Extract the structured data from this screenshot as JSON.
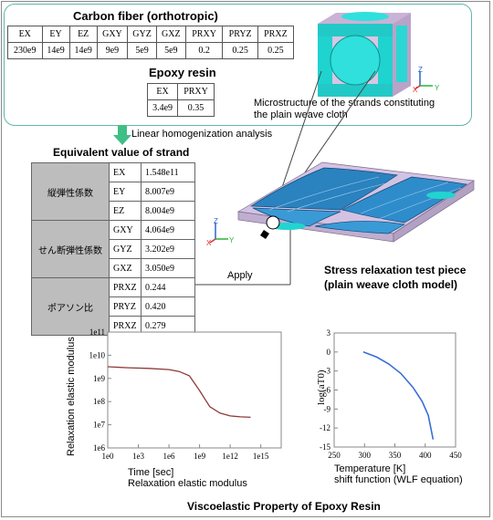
{
  "carbon": {
    "title": "Carbon fiber (orthotropic)",
    "headers": [
      "EX",
      "EY",
      "EZ",
      "GXY",
      "GYZ",
      "GXZ",
      "PRXY",
      "PRYZ",
      "PRXZ"
    ],
    "values": [
      "230e9",
      "14e9",
      "14e9",
      "9e9",
      "5e9",
      "5e9",
      "0.2",
      "0.25",
      "0.25"
    ]
  },
  "epoxy": {
    "title": "Epoxy resin",
    "headers": [
      "EX",
      "PRXY"
    ],
    "values": [
      "3.4e9",
      "0.35"
    ]
  },
  "micro_caption_1": "Microstructure of the strands constituting",
  "micro_caption_2": "the plain weave cloth",
  "linear_label": "Linear homogenization analysis",
  "equiv": {
    "title": "Equivalent value of strand",
    "groups": [
      {
        "name": "縦弾性係数",
        "rows": [
          [
            "EX",
            "1.548e11"
          ],
          [
            "EY",
            "8.007e9"
          ],
          [
            "EZ",
            "8.004e9"
          ]
        ]
      },
      {
        "name": "せん断弾性係数",
        "rows": [
          [
            "GXY",
            "4.064e9"
          ],
          [
            "GYZ",
            "3.202e9"
          ],
          [
            "GXZ",
            "3.050e9"
          ]
        ]
      },
      {
        "name": "ポアソン比",
        "rows": [
          [
            "PRXZ",
            "0.244"
          ],
          [
            "PRYZ",
            "0.420"
          ],
          [
            "PRXZ",
            "0.279"
          ]
        ]
      }
    ]
  },
  "apply_label": "Apply",
  "test_piece_1": "Stress relaxation test piece",
  "test_piece_2": "(plain weave cloth model)",
  "axis_triad": {
    "z": "Z",
    "x": "X",
    "y": "Y"
  },
  "chart_data": [
    {
      "type": "line",
      "title": "",
      "xlabel": "Time [sec]",
      "ylabel": "Relaxation elastic modulus",
      "subtitle": "Relaxation elastic modulus",
      "xscale": "log",
      "yscale": "log",
      "xlim": [
        1,
        1e+17
      ],
      "ylim": [
        1000000.0,
        100000000000.0
      ],
      "x_ticks": [
        "1e0",
        "1e3",
        "1e6",
        "1e9",
        "1e12",
        "1e15"
      ],
      "y_ticks": [
        "1e11",
        "1e10",
        "1e9",
        "1e8",
        "1e7",
        "1e6"
      ],
      "color": "#8b3a3a",
      "series": [
        {
          "x": [
            1,
            100.0,
            10000.0,
            1000000.0,
            10000000.0,
            100000000.0,
            1000000000.0,
            10000000000.0,
            100000000000.0,
            1000000000000.0,
            10000000000000.0,
            100000000000000.0
          ],
          "y": [
            3200000000.0,
            2900000000.0,
            2700000000.0,
            2400000000.0,
            2000000000.0,
            1300000000.0,
            300000000.0,
            60000000.0,
            32000000.0,
            24000000.0,
            22000000.0,
            21000000.0
          ]
        }
      ]
    },
    {
      "type": "line",
      "title": "",
      "xlabel": "Temperature [K]",
      "ylabel": "log(aT0)",
      "subtitle": "shift function (WLF equation)",
      "xlim": [
        250,
        450
      ],
      "ylim": [
        -15,
        3
      ],
      "x_ticks": [
        250,
        300,
        350,
        400,
        450
      ],
      "y_ticks": [
        3,
        0,
        -3,
        -6,
        -9,
        -12,
        -15
      ],
      "color": "#3a6fd8",
      "series": [
        {
          "x": [
            298,
            320,
            340,
            360,
            380,
            395,
            405,
            413
          ],
          "y": [
            0,
            -0.8,
            -1.9,
            -3.4,
            -5.6,
            -7.8,
            -10.0,
            -13.8
          ]
        }
      ]
    }
  ],
  "bottom_title": "Viscoelastic Property of Epoxy Resin"
}
